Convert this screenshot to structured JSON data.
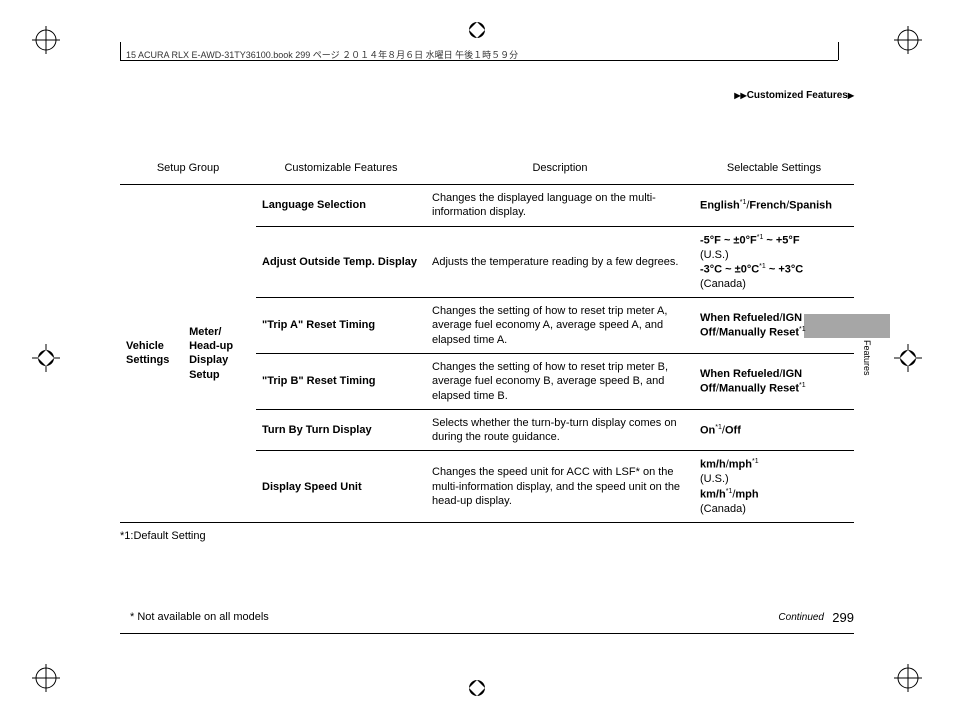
{
  "meta": {
    "header_text": "15 ACURA RLX E-AWD-31TY36100.book  299 ページ  ２０１４年８月６日  水曜日  午後１時５９分",
    "breadcrumb_label": "Customized Features",
    "tab_label": "Features",
    "footnote_default": "*1:Default Setting",
    "footnote_models": "* Not available on all models",
    "continued": "Continued",
    "page_number": "299"
  },
  "headers": {
    "group": "Setup Group",
    "feat": "Customizable Features",
    "desc": "Description",
    "sel": "Selectable Settings"
  },
  "group": {
    "label": "Vehicle Settings"
  },
  "subgroup": {
    "label": "Meter/ Head-up Display Setup"
  },
  "rows": [
    {
      "feature": "Language Selection",
      "description": "Changes the displayed language on the multi-information display.",
      "settings_html": "<span class='b'>English</span><span class='sup'>*1</span>/<span class='b'>French</span>/<span class='b'>Spanish</span>"
    },
    {
      "feature": "Adjust Outside Temp. Display",
      "description": "Adjusts the temperature reading by a few degrees.",
      "settings_html": "<span class='b'>-5°F ~ ±0°F</span><span class='sup'>*1</span><span class='b'> ~ +5°F</span><br>(U.S.)<br><span class='b'>-3°C ~ ±0°C</span><span class='sup'>*1</span><span class='b'> ~ +3°C</span><br>(Canada)"
    },
    {
      "feature": "\"Trip A\" Reset Timing",
      "description": "Changes the setting of how to reset trip meter A, average fuel economy A, average speed A, and elapsed time A.",
      "settings_html": "<span class='b'>When Refueled</span>/<span class='b'>IGN Off</span>/<span class='b'>Manually Reset</span><span class='sup'>*1</span>"
    },
    {
      "feature": "\"Trip B\" Reset Timing",
      "description": "Changes the setting of how to reset trip meter B, average fuel economy B, average speed B, and elapsed time B.",
      "settings_html": "<span class='b'>When Refueled</span>/<span class='b'>IGN Off</span>/<span class='b'>Manually Reset</span><span class='sup'>*1</span>"
    },
    {
      "feature": "Turn By Turn Display",
      "description": "Selects whether the turn-by-turn display comes on during the route guidance.",
      "settings_html": "<span class='b'>On</span><span class='sup'>*1</span>/<span class='b'>Off</span>"
    },
    {
      "feature": "Display Speed Unit",
      "description": "Changes the speed unit for ACC with LSF* on the multi-information display, and the speed unit on the head-up display.",
      "settings_html": "<span class='b'>km/h</span>/<span class='b'>mph</span><span class='sup'>*1</span><br>(U.S.)<br><span class='b'>km/h</span><span class='sup'>*1</span>/<span class='b'>mph</span><br>(Canada)"
    }
  ]
}
